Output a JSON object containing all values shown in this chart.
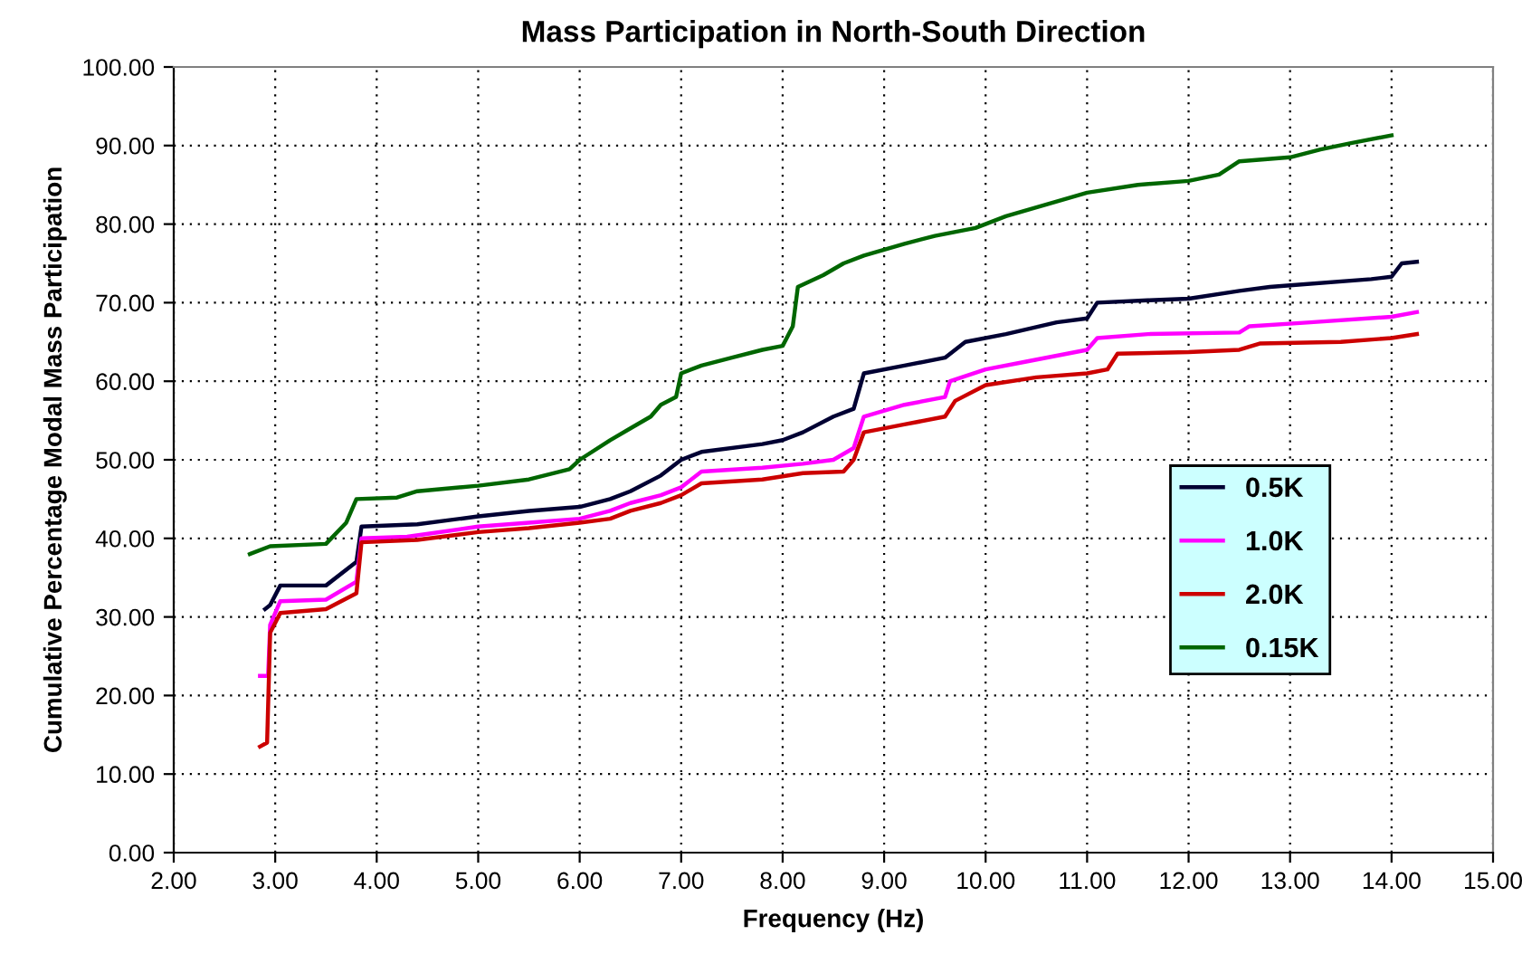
{
  "chart_data": {
    "type": "line",
    "title": "Mass Participation in North-South Direction",
    "xlabel": "Frequency (Hz)",
    "ylabel": "Cumulative Percentage Modal Mass Participation",
    "xlim": [
      2,
      15
    ],
    "ylim": [
      0,
      100
    ],
    "xticks": [
      {
        "value": 2,
        "label": "2.00"
      },
      {
        "value": 3,
        "label": "3.00"
      },
      {
        "value": 4,
        "label": "4.00"
      },
      {
        "value": 5,
        "label": "5.00"
      },
      {
        "value": 6,
        "label": "6.00"
      },
      {
        "value": 7,
        "label": "7.00"
      },
      {
        "value": 8,
        "label": "8.00"
      },
      {
        "value": 9,
        "label": "9.00"
      },
      {
        "value": 10,
        "label": "10.00"
      },
      {
        "value": 11,
        "label": "11.00"
      },
      {
        "value": 12,
        "label": "12.00"
      },
      {
        "value": 13,
        "label": "13.00"
      },
      {
        "value": 14,
        "label": "14.00"
      },
      {
        "value": 15,
        "label": "15.00"
      }
    ],
    "yticks": [
      {
        "value": 0,
        "label": "0.00"
      },
      {
        "value": 10,
        "label": "10.00"
      },
      {
        "value": 20,
        "label": "20.00"
      },
      {
        "value": 30,
        "label": "30.00"
      },
      {
        "value": 40,
        "label": "40.00"
      },
      {
        "value": 50,
        "label": "50.00"
      },
      {
        "value": 60,
        "label": "60.00"
      },
      {
        "value": 70,
        "label": "70.00"
      },
      {
        "value": 80,
        "label": "80.00"
      },
      {
        "value": 90,
        "label": "90.00"
      },
      {
        "value": 100,
        "label": "100.00"
      }
    ],
    "grid": true,
    "legend": "right",
    "marker": "none",
    "line_style": "solid",
    "series": [
      {
        "name": "0.5K",
        "color": "#000033",
        "x": [
          2.9,
          2.95,
          3.05,
          3.5,
          3.8,
          3.85,
          4.4,
          5.0,
          5.5,
          6.0,
          6.3,
          6.5,
          6.8,
          7.0,
          7.2,
          7.8,
          8.0,
          8.2,
          8.5,
          8.7,
          8.8,
          9.2,
          9.6,
          9.8,
          10.2,
          10.7,
          11.0,
          11.1,
          11.6,
          12.0,
          12.5,
          12.8,
          13.0,
          13.8,
          14.0,
          14.1,
          14.25
        ],
        "values": [
          31,
          31.5,
          34,
          34,
          37,
          41.5,
          41.8,
          42.8,
          43.5,
          44,
          45,
          46,
          48,
          50,
          51,
          52,
          52.5,
          53.5,
          55.5,
          56.5,
          61,
          62,
          63,
          65,
          66,
          67.5,
          68,
          70,
          70.3,
          70.5,
          71.5,
          72,
          72.2,
          73,
          73.3,
          75,
          75.2
        ]
      },
      {
        "name": "1.0K",
        "color": "#ff00ff",
        "x": [
          2.85,
          2.93,
          2.95,
          3.05,
          3.5,
          3.8,
          3.85,
          4.3,
          5.0,
          5.5,
          6.0,
          6.3,
          6.5,
          6.8,
          7.0,
          7.2,
          7.8,
          8.2,
          8.5,
          8.7,
          8.8,
          9.2,
          9.6,
          9.65,
          10.0,
          10.4,
          11.0,
          11.1,
          11.6,
          12.5,
          12.6,
          13.2,
          14.0,
          14.25
        ],
        "values": [
          22.5,
          22.5,
          29,
          32,
          32.2,
          34.5,
          40,
          40.2,
          41.5,
          42,
          42.5,
          43.5,
          44.5,
          45.5,
          46.5,
          48.5,
          49,
          49.5,
          50,
          51.5,
          55.5,
          57,
          58,
          60,
          61.5,
          62.5,
          64,
          65.5,
          66,
          66.2,
          67,
          67.5,
          68.2,
          68.8
        ]
      },
      {
        "name": "2.0K",
        "color": "#cc0000",
        "x": [
          2.85,
          2.92,
          2.95,
          3.05,
          3.5,
          3.8,
          3.85,
          4.4,
          5.0,
          5.5,
          6.0,
          6.3,
          6.5,
          6.8,
          7.0,
          7.2,
          7.8,
          8.2,
          8.6,
          8.7,
          8.8,
          9.2,
          9.6,
          9.7,
          10.0,
          10.5,
          11.0,
          11.2,
          11.3,
          12.0,
          12.5,
          12.7,
          13.5,
          14.0,
          14.25
        ],
        "values": [
          13.5,
          14,
          28,
          30.5,
          31,
          33,
          39.5,
          39.8,
          40.8,
          41.3,
          42,
          42.5,
          43.5,
          44.5,
          45.5,
          47,
          47.5,
          48.3,
          48.5,
          50,
          53.5,
          54.5,
          55.5,
          57.5,
          59.5,
          60.5,
          61,
          61.5,
          63.5,
          63.7,
          64,
          64.8,
          65,
          65.5,
          66
        ]
      },
      {
        "name": "0.15K",
        "color": "#006600",
        "x": [
          2.75,
          2.95,
          3.5,
          3.7,
          3.8,
          4.2,
          4.4,
          5.0,
          5.5,
          5.9,
          6.0,
          6.3,
          6.5,
          6.7,
          6.8,
          6.95,
          7.0,
          7.2,
          7.5,
          7.8,
          8.0,
          8.1,
          8.15,
          8.4,
          8.6,
          8.8,
          9.2,
          9.5,
          9.9,
          10.2,
          10.6,
          11.0,
          11.5,
          12.0,
          12.3,
          12.5,
          13.0,
          13.3,
          13.6,
          14.0
        ],
        "values": [
          38,
          39,
          39.3,
          42,
          45,
          45.2,
          46,
          46.7,
          47.5,
          48.8,
          50,
          52.5,
          54,
          55.5,
          57,
          58,
          61,
          62,
          63,
          64,
          64.5,
          67,
          72,
          73.5,
          75,
          76,
          77.5,
          78.5,
          79.5,
          81,
          82.5,
          84,
          85,
          85.5,
          86.3,
          88,
          88.5,
          89.5,
          90.3,
          91.3
        ]
      }
    ]
  }
}
